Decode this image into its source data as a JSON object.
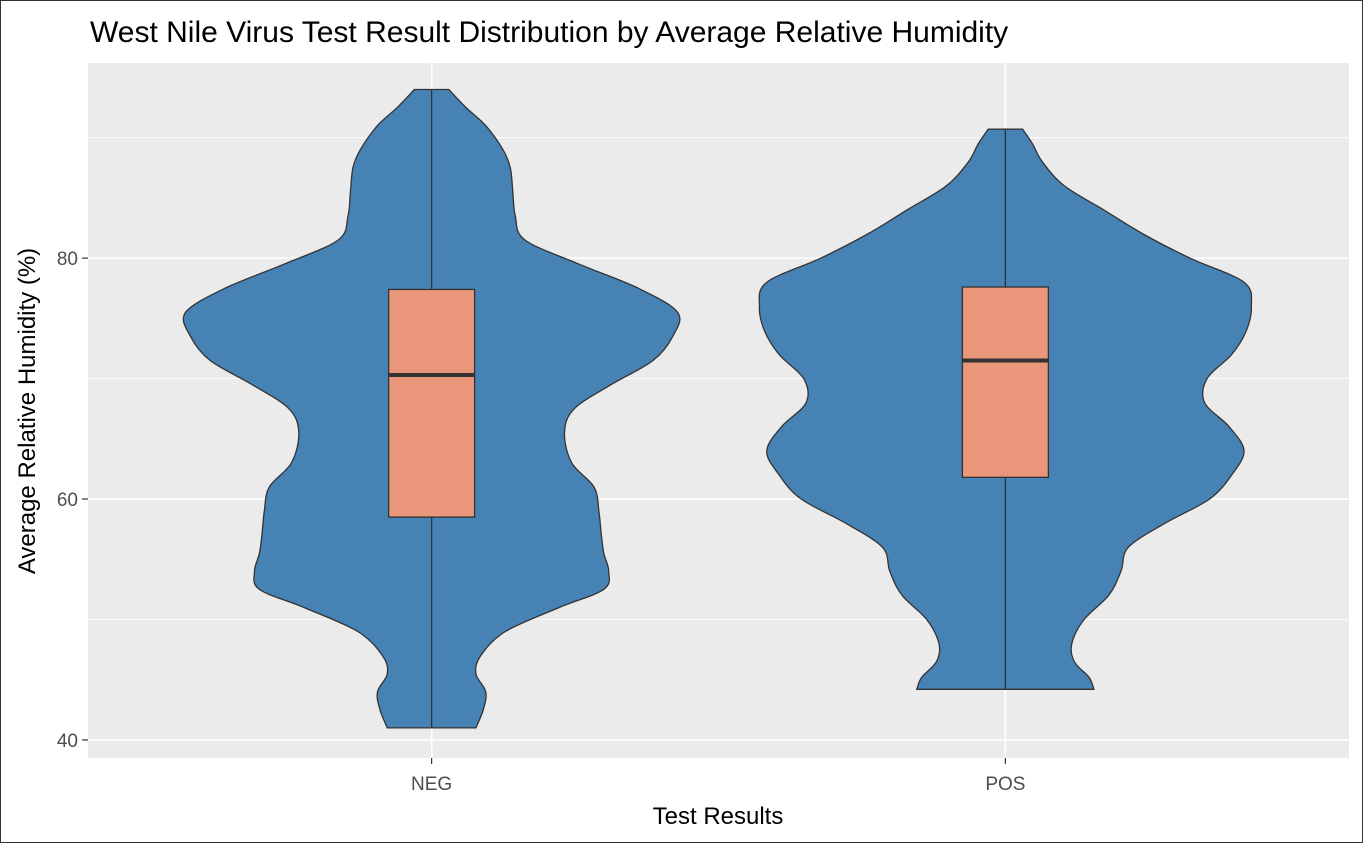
{
  "chart_data": {
    "type": "violin",
    "title": "West Nile Virus Test Result Distribution by Average Relative Humidity",
    "xlabel": "Test Results",
    "ylabel": "Average Relative Humidity (%)",
    "categories": [
      "NEG",
      "POS"
    ],
    "ylim": [
      38.5,
      96.2
    ],
    "yticks": [
      40,
      60,
      80
    ],
    "grid": true,
    "colors": {
      "violin": "#4682B4",
      "box": "#E9967A",
      "panel": "#EBEBEB",
      "grid": "#FFFFFF",
      "outline": "#333333"
    },
    "groups": [
      {
        "name": "NEG",
        "min": 41.0,
        "q1": 58.5,
        "median": 70.3,
        "q3": 77.4,
        "max": 94.0,
        "density": [
          [
            41.0,
            0.18
          ],
          [
            42.5,
            0.21
          ],
          [
            44.0,
            0.22
          ],
          [
            45.5,
            0.18
          ],
          [
            47.0,
            0.2
          ],
          [
            49.0,
            0.3
          ],
          [
            51.0,
            0.52
          ],
          [
            52.5,
            0.7
          ],
          [
            54.0,
            0.72
          ],
          [
            55.5,
            0.7
          ],
          [
            57.0,
            0.69
          ],
          [
            59.0,
            0.68
          ],
          [
            61.0,
            0.66
          ],
          [
            63.0,
            0.57
          ],
          [
            65.5,
            0.54
          ],
          [
            67.5,
            0.58
          ],
          [
            69.5,
            0.73
          ],
          [
            71.5,
            0.9
          ],
          [
            73.5,
            0.98
          ],
          [
            75.5,
            1.0
          ],
          [
            77.5,
            0.84
          ],
          [
            79.5,
            0.6
          ],
          [
            81.5,
            0.38
          ],
          [
            83.5,
            0.34
          ],
          [
            85.5,
            0.33
          ],
          [
            87.5,
            0.32
          ],
          [
            89.0,
            0.29
          ],
          [
            91.0,
            0.22
          ],
          [
            92.5,
            0.14
          ],
          [
            94.0,
            0.07
          ]
        ]
      },
      {
        "name": "POS",
        "min": 44.2,
        "q1": 61.8,
        "median": 71.5,
        "q3": 77.6,
        "max": 90.7,
        "density": [
          [
            44.2,
            0.36
          ],
          [
            45.2,
            0.34
          ],
          [
            46.5,
            0.28
          ],
          [
            48.0,
            0.27
          ],
          [
            50.0,
            0.32
          ],
          [
            52.0,
            0.42
          ],
          [
            54.0,
            0.47
          ],
          [
            56.0,
            0.5
          ],
          [
            58.0,
            0.65
          ],
          [
            60.0,
            0.83
          ],
          [
            62.0,
            0.92
          ],
          [
            64.0,
            0.97
          ],
          [
            66.0,
            0.91
          ],
          [
            68.0,
            0.81
          ],
          [
            70.0,
            0.82
          ],
          [
            72.0,
            0.92
          ],
          [
            74.0,
            0.98
          ],
          [
            76.0,
            1.0
          ],
          [
            78.0,
            0.97
          ],
          [
            80.0,
            0.75
          ],
          [
            82.0,
            0.56
          ],
          [
            84.0,
            0.4
          ],
          [
            86.0,
            0.24
          ],
          [
            88.0,
            0.15
          ],
          [
            89.5,
            0.11
          ],
          [
            90.7,
            0.07
          ]
        ]
      }
    ]
  }
}
